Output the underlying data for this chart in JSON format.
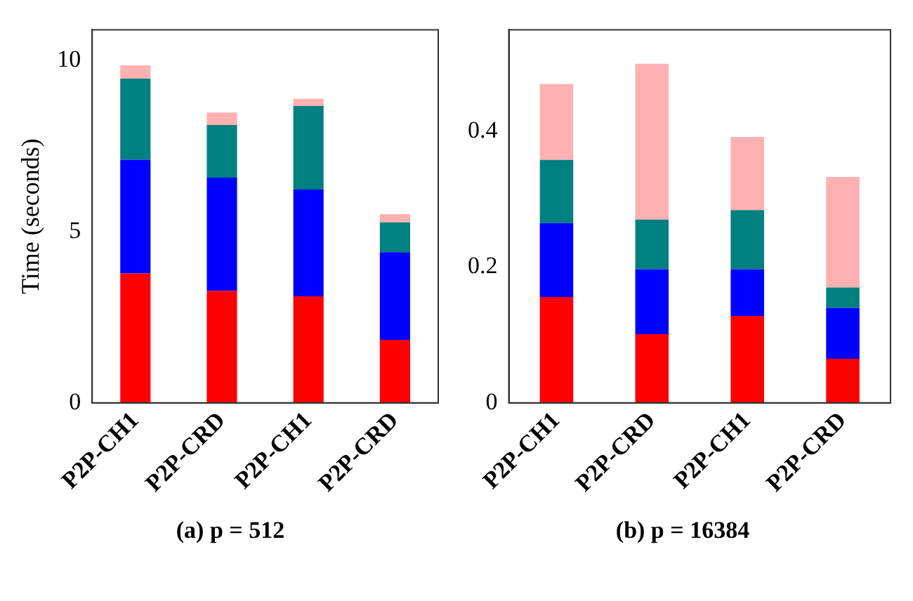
{
  "chart_data": [
    {
      "type": "bar",
      "title": "(a) p = 512",
      "ylabel": "Time (seconds)",
      "categories": [
        "P2P-CH1",
        "P2P-CRD",
        "P2P-CH1",
        "P2P-CRD"
      ],
      "stacked": true,
      "ylim": [
        0,
        10.9
      ],
      "yticks": [
        0,
        5,
        10
      ],
      "grid": false,
      "legend": false,
      "series": [
        {
          "color": "#ff0000",
          "values": [
            3.78,
            3.27,
            3.11,
            1.84
          ]
        },
        {
          "color": "#0000ff",
          "values": [
            3.32,
            3.31,
            3.12,
            2.56
          ]
        },
        {
          "color": "#008080",
          "values": [
            2.37,
            1.54,
            2.44,
            0.87
          ]
        },
        {
          "color": "#ffb0b0",
          "values": [
            0.39,
            0.36,
            0.21,
            0.24
          ]
        }
      ]
    },
    {
      "type": "bar",
      "title": "(b) p = 16384",
      "categories": [
        "P2P-CH1",
        "P2P-CRD",
        "P2P-CH1",
        "P2P-CRD"
      ],
      "stacked": true,
      "ylim": [
        0,
        0.55
      ],
      "yticks": [
        0,
        0.2,
        0.4
      ],
      "grid": false,
      "legend": false,
      "series": [
        {
          "color": "#ff0000",
          "values": [
            0.156,
            0.101,
            0.128,
            0.065
          ]
        },
        {
          "color": "#0000ff",
          "values": [
            0.109,
            0.096,
            0.069,
            0.075
          ]
        },
        {
          "color": "#008080",
          "values": [
            0.093,
            0.073,
            0.087,
            0.03
          ]
        },
        {
          "color": "#ffb0b0",
          "values": [
            0.112,
            0.23,
            0.108,
            0.163
          ]
        }
      ]
    }
  ]
}
